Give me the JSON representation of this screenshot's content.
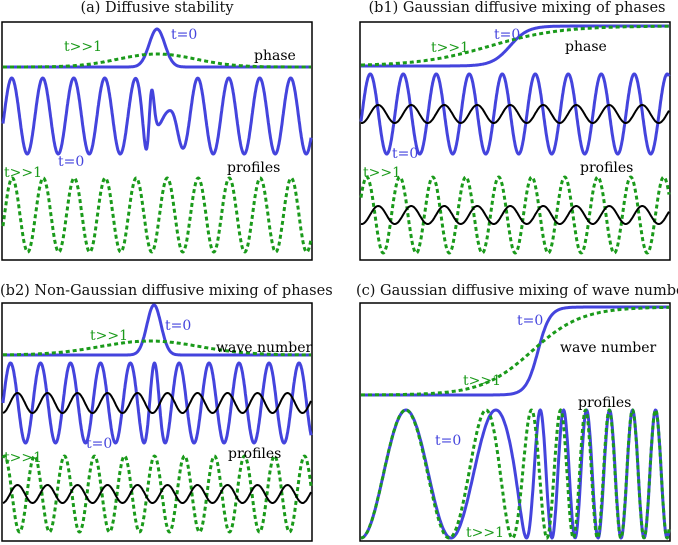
{
  "colors": {
    "blue": "#4444dd",
    "green": "#1a9a1a",
    "black": "#000000"
  },
  "panels": [
    {
      "title": "(a) Diffusive stability",
      "labels": {
        "green": "t>>1",
        "blue": "t=0",
        "quantity": "phase",
        "blue2": "t=0",
        "green2": "t>>1",
        "profiles": "profiles"
      }
    },
    {
      "title": "(b1) Gaussian diffusive mixing of phases",
      "labels": {
        "green": "t>>1",
        "blue": "t=0",
        "quantity": "phase",
        "blue2": "t=0",
        "green2": "t>>1",
        "profiles": "profiles"
      }
    },
    {
      "title": "(b2) Non-Gaussian diffusive mixing of phases",
      "labels": {
        "green": "t>>1",
        "blue": "t=0",
        "quantity": "wave number",
        "blue2": "t=0",
        "green2": "t>>1",
        "profiles": "profiles"
      }
    },
    {
      "title": "(c) Gaussian diffusive mixing of wave numbers",
      "labels": {
        "green": "t>>1",
        "blue": "t=0",
        "quantity": "wave number",
        "blue2": "t=0",
        "green2": "t>>1",
        "profiles": "profiles"
      }
    }
  ]
}
